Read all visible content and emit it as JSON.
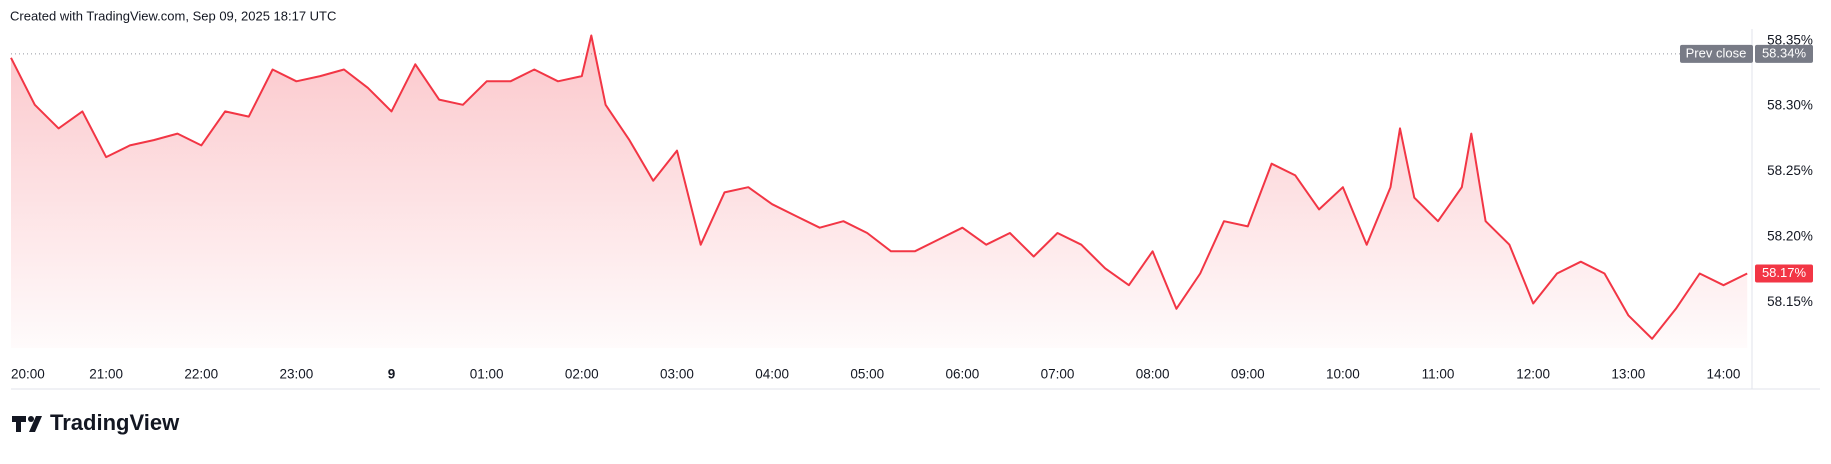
{
  "header": "Created with TradingView.com, Sep 09, 2025 18:17 UTC",
  "brand": "TradingView",
  "chart_data": {
    "type": "area",
    "x": [
      0,
      0.25,
      0.5,
      0.75,
      1,
      1.25,
      1.5,
      1.75,
      2,
      2.25,
      2.5,
      2.75,
      3,
      3.25,
      3.5,
      3.75,
      4,
      4.25,
      4.5,
      4.75,
      5,
      5.25,
      5.5,
      5.75,
      6,
      6.1,
      6.25,
      6.5,
      6.75,
      7,
      7.25,
      7.5,
      7.75,
      8,
      8.25,
      8.5,
      8.75,
      9,
      9.25,
      9.5,
      9.75,
      10,
      10.25,
      10.5,
      10.75,
      11,
      11.25,
      11.5,
      11.75,
      12,
      12.25,
      12.5,
      12.75,
      13,
      13.25,
      13.5,
      13.75,
      14,
      14.25,
      14.5,
      14.6,
      14.75,
      15,
      15.25,
      15.35,
      15.5,
      15.75,
      16,
      16.25,
      16.5,
      16.75,
      17,
      17.25,
      17.5,
      17.75,
      18,
      18.25
    ],
    "series": [
      {
        "color": "#f23645",
        "values": [
          58.337,
          58.301,
          58.283,
          58.296,
          58.261,
          58.27,
          58.274,
          58.279,
          58.27,
          58.296,
          58.292,
          58.328,
          58.319,
          58.323,
          58.328,
          58.314,
          58.296,
          58.332,
          58.305,
          58.301,
          58.319,
          58.319,
          58.328,
          58.319,
          58.323,
          58.354,
          58.301,
          58.274,
          58.243,
          58.266,
          58.194,
          58.234,
          58.238,
          58.225,
          58.216,
          58.207,
          58.212,
          58.203,
          58.189,
          58.189,
          58.198,
          58.207,
          58.194,
          58.203,
          58.185,
          58.203,
          58.194,
          58.176,
          58.163,
          58.189,
          58.145,
          58.172,
          58.212,
          58.208,
          58.256,
          58.247,
          58.221,
          58.238,
          58.194,
          58.238,
          58.283,
          58.23,
          58.212,
          58.238,
          58.279,
          58.212,
          58.194,
          58.149,
          58.172,
          58.181,
          58.172,
          58.14,
          58.122,
          58.145,
          58.172,
          58.163,
          58.172
        ]
      }
    ],
    "last_label": "58.17%",
    "prev_close": {
      "label": "Prev close",
      "value": 58.34,
      "value_label": "58.34%"
    },
    "xlim": [
      0,
      18.3
    ],
    "ylim": [
      58.115,
      58.359
    ],
    "xticks": [
      {
        "value": 0,
        "label": "20:00"
      },
      {
        "value": 1,
        "label": "21:00"
      },
      {
        "value": 2,
        "label": "22:00"
      },
      {
        "value": 3,
        "label": "23:00"
      },
      {
        "value": 4,
        "label": "9"
      },
      {
        "value": 5,
        "label": "01:00"
      },
      {
        "value": 6,
        "label": "02:00"
      },
      {
        "value": 7,
        "label": "03:00"
      },
      {
        "value": 8,
        "label": "04:00"
      },
      {
        "value": 9,
        "label": "05:00"
      },
      {
        "value": 10,
        "label": "06:00"
      },
      {
        "value": 11,
        "label": "07:00"
      },
      {
        "value": 12,
        "label": "08:00"
      },
      {
        "value": 13,
        "label": "09:00"
      },
      {
        "value": 14,
        "label": "10:00"
      },
      {
        "value": 15,
        "label": "11:00"
      },
      {
        "value": 16,
        "label": "12:00"
      },
      {
        "value": 17,
        "label": "13:00"
      },
      {
        "value": 18,
        "label": "14:00"
      }
    ],
    "yticks": [
      {
        "value": 58.15,
        "label": "58.15%"
      },
      {
        "value": 58.2,
        "label": "58.20%"
      },
      {
        "value": 58.25,
        "label": "58.25%"
      },
      {
        "value": 58.3,
        "label": "58.30%"
      },
      {
        "value": 58.35,
        "label": "58.35%"
      }
    ]
  }
}
